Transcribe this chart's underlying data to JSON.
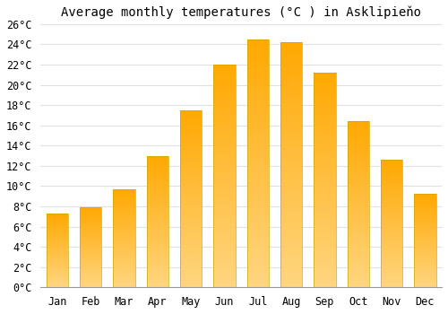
{
  "title": "Average monthly temperatures (°C ) in Asklipieňo",
  "months": [
    "Jan",
    "Feb",
    "Mar",
    "Apr",
    "May",
    "Jun",
    "Jul",
    "Aug",
    "Sep",
    "Oct",
    "Nov",
    "Dec"
  ],
  "values": [
    7.3,
    7.9,
    9.7,
    13.0,
    17.5,
    22.0,
    24.5,
    24.2,
    21.2,
    16.4,
    12.6,
    9.2
  ],
  "bar_color_top": "#FFA800",
  "bar_color_bottom": "#FFD580",
  "ylim": [
    0,
    26
  ],
  "yticks": [
    0,
    2,
    4,
    6,
    8,
    10,
    12,
    14,
    16,
    18,
    20,
    22,
    24,
    26
  ],
  "ytick_labels": [
    "0°C",
    "2°C",
    "4°C",
    "6°C",
    "8°C",
    "10°C",
    "12°C",
    "14°C",
    "16°C",
    "18°C",
    "20°C",
    "22°C",
    "24°C",
    "26°C"
  ],
  "bg_color": "#ffffff",
  "grid_color": "#e0e0e0",
  "title_fontsize": 10,
  "tick_fontsize": 8.5,
  "bar_edge_color": "#ccaa00",
  "bar_edge_width": 0.5,
  "bar_width": 0.65
}
